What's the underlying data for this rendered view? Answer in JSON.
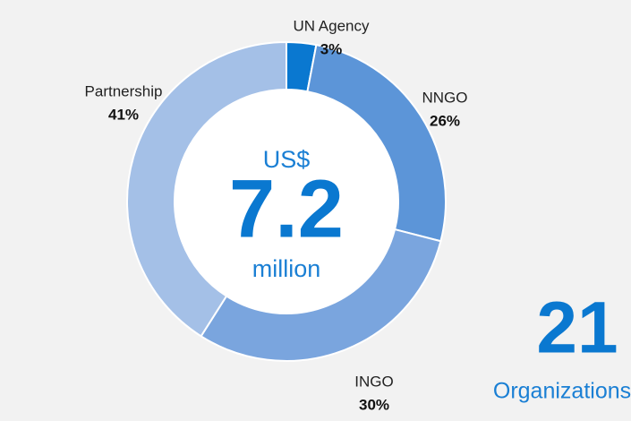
{
  "chart_data": {
    "type": "donut",
    "categories": [
      "UN Agency",
      "NNGO",
      "INGO",
      "Partnership"
    ],
    "values": [
      3,
      26,
      30,
      41
    ],
    "value_labels": [
      "3%",
      "26%",
      "30%",
      "41%"
    ],
    "colors": [
      "#0a78d0",
      "#5c95d8",
      "#7aa5de",
      "#a4c0e7"
    ],
    "total_prefix": "US$",
    "total": 7.2,
    "total_unit": "million",
    "organizations_count": 21,
    "organizations_label": "Organizations"
  }
}
